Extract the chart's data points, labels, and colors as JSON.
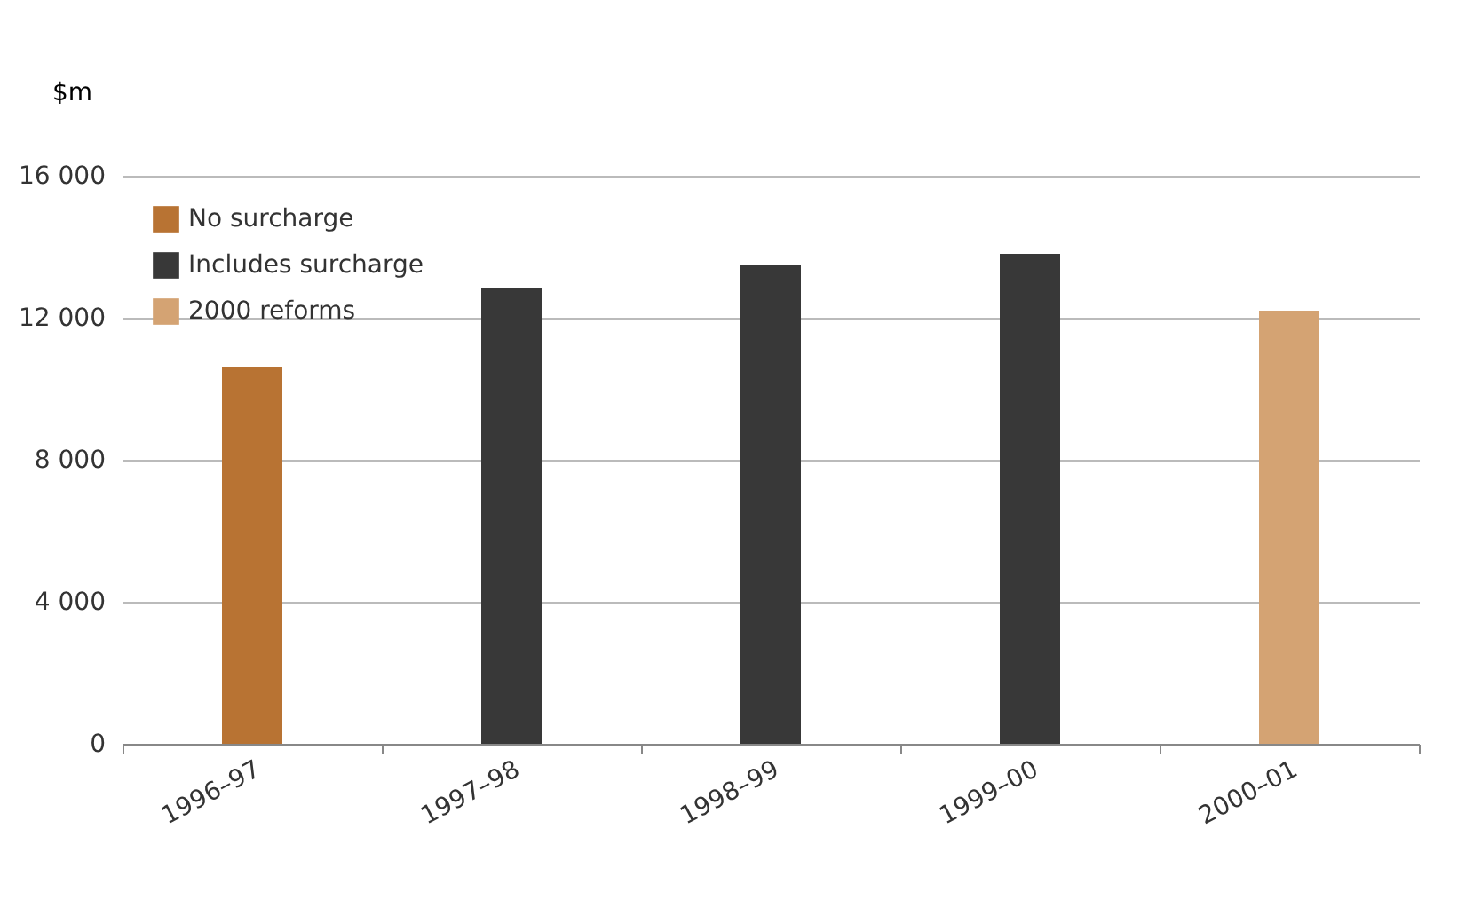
{
  "chart_data": {
    "type": "bar",
    "ylabel": "$m",
    "categories": [
      "1996–97",
      "1997–98",
      "1998–99",
      "1999–00",
      "2000–01"
    ],
    "series": [
      {
        "name": "No surcharge",
        "color": "#b87333",
        "values": [
          10600,
          null,
          null,
          null,
          null
        ]
      },
      {
        "name": "Includes surcharge",
        "color": "#383838",
        "values": [
          null,
          12850,
          13500,
          13800,
          null
        ]
      },
      {
        "name": "2000 reforms",
        "color": "#d4a373",
        "values": [
          null,
          null,
          null,
          null,
          12200
        ]
      }
    ],
    "ylim": [
      0,
      16000
    ],
    "yticks": [
      0,
      {
        "value": 4000,
        "label": "4 000"
      },
      {
        "value": 8000,
        "label": "8 000"
      },
      {
        "value": 12000,
        "label": "12 000"
      },
      {
        "value": 16000,
        "label": "16 000"
      }
    ],
    "grid": "y",
    "legend": "top left"
  }
}
